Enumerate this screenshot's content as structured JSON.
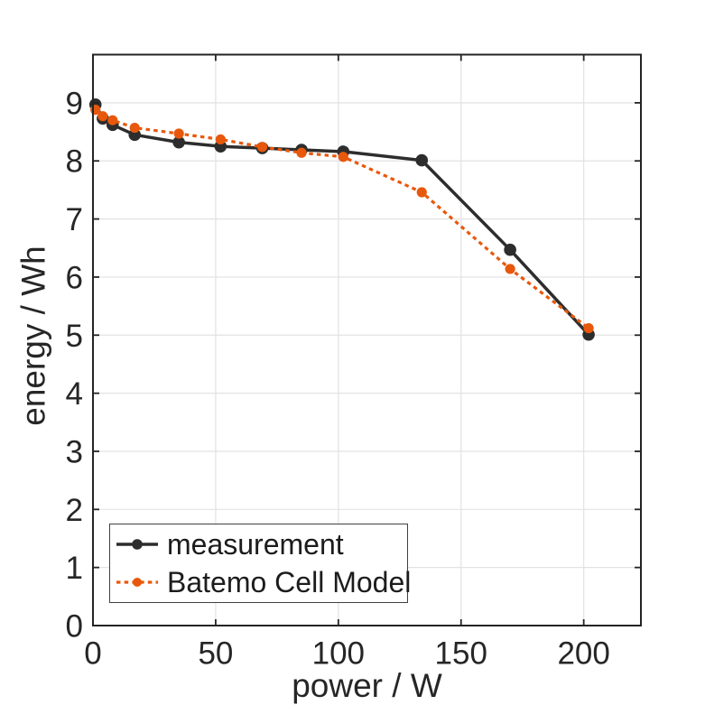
{
  "chart_data": {
    "type": "line",
    "title": "",
    "xlabel": "power / W",
    "ylabel": "energy / Wh",
    "xlim": [
      0,
      223.3
    ],
    "ylim": [
      0,
      9.83
    ],
    "xticks": [
      0,
      50,
      100,
      150,
      200
    ],
    "yticks": [
      0,
      1,
      2,
      3,
      4,
      5,
      6,
      7,
      8,
      9
    ],
    "grid": true,
    "legend_position": "southwest",
    "x": [
      1,
      4,
      8,
      17,
      35,
      52,
      69,
      85,
      102,
      134,
      170,
      202
    ],
    "series": [
      {
        "name": "measurement",
        "color": "#2d2d2d",
        "line_style": "solid",
        "marker": "circle",
        "values": [
          8.97,
          8.73,
          8.62,
          8.45,
          8.32,
          8.25,
          8.22,
          8.19,
          8.16,
          8.01,
          6.47,
          5.01
        ]
      },
      {
        "name": "Batemo Cell Model",
        "color": "#e8580c",
        "line_style": "dotted",
        "marker": "circle",
        "values": [
          8.88,
          8.77,
          8.7,
          8.57,
          8.47,
          8.37,
          8.24,
          8.14,
          8.07,
          7.46,
          6.14,
          5.12
        ]
      }
    ],
    "style": {
      "background": "#ffffff",
      "axis_color": "#242424",
      "tick_label_color": "#262626",
      "grid_color": "#e2e2e2",
      "legend_border_color": "#404040"
    }
  }
}
